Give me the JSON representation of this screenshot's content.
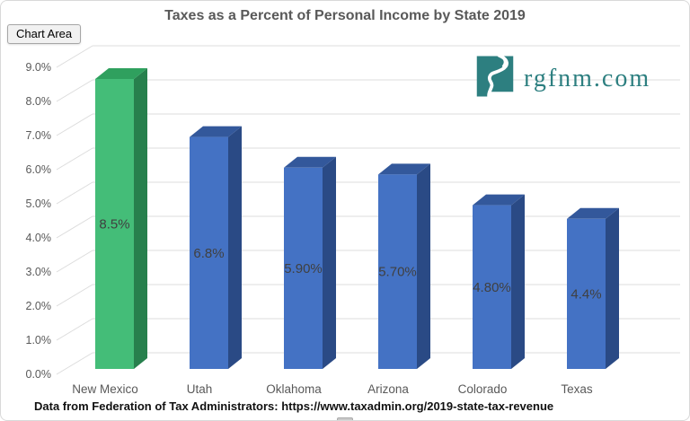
{
  "chart_area_label": {
    "text": "Chart Area"
  },
  "logo": {
    "text": "rgfnm.com",
    "color": "#2D7F80",
    "icon": "new-mexico-rio-grande-icon"
  },
  "footer": {
    "source_text": "Data from Federation of Tax Administrators: https://www.taxadmin.org/2019-state-tax-revenue"
  },
  "chart_data": {
    "type": "bar",
    "variant": "3d-column",
    "title": "Taxes as a Percent of Personal Income by State 2019",
    "xlabel": "",
    "ylabel": "",
    "categories": [
      "New Mexico",
      "Utah",
      "Oklahoma",
      "Arizona",
      "Colorado",
      "Texas"
    ],
    "values": [
      8.5,
      6.8,
      5.9,
      5.7,
      4.8,
      4.4
    ],
    "data_labels": [
      "8.5%",
      "6.8%",
      "5.90%",
      "5.70%",
      "4.80%",
      "4.4%"
    ],
    "y_tick_labels": [
      "0.0%",
      "1.0%",
      "2.0%",
      "3.0%",
      "4.0%",
      "5.0%",
      "6.0%",
      "7.0%",
      "8.0%",
      "9.0%"
    ],
    "ylim": [
      0,
      9
    ],
    "y_tick_step": 1,
    "grid": true,
    "legend": "none",
    "highlight_index": 0,
    "colors": {
      "highlight_front": "#44BD78",
      "highlight_top": "#2FA05E",
      "highlight_side": "#27804D",
      "default_front": "#4472C4",
      "default_top": "#33589B",
      "default_side": "#2A4A85",
      "gridline": "#DCDCDC",
      "axis_text": "#595959",
      "data_label_text": "#404040"
    }
  }
}
